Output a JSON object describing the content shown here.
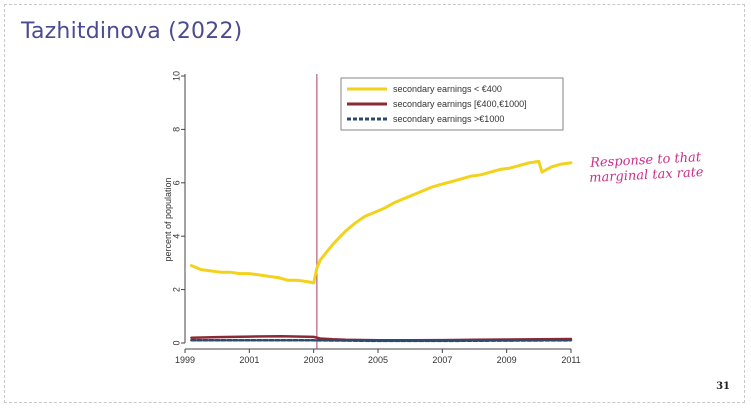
{
  "slide": {
    "title": "Tazhitdinova (2022)",
    "page_number": "31",
    "annotation": "Response to that marginal tax rate"
  },
  "colors": {
    "title": "#4b4b8f",
    "annotation": "#cc2f8a",
    "vline": "#a04060"
  },
  "chart_data": {
    "type": "line",
    "xlabel": "",
    "ylabel": "percent of population",
    "xlim": [
      1999,
      2011
    ],
    "ylim": [
      0,
      10
    ],
    "xticks": [
      1999,
      2001,
      2003,
      2005,
      2007,
      2009,
      2011
    ],
    "yticks": [
      0,
      2,
      4,
      6,
      8,
      10
    ],
    "vline": 2003.1,
    "legend_position": "top-right",
    "grid": false,
    "series": [
      {
        "name": "secondary earnings < €400",
        "color": "#f2d21a",
        "dash": "solid",
        "x": [
          1999.2,
          1999.5,
          1999.8,
          2000.1,
          2000.4,
          2000.7,
          2001.0,
          2001.3,
          2001.6,
          2001.9,
          2002.2,
          2002.5,
          2002.8,
          2003.0,
          2003.1,
          2003.2,
          2003.4,
          2003.6,
          2003.8,
          2004.0,
          2004.3,
          2004.6,
          2004.9,
          2005.2,
          2005.5,
          2005.8,
          2006.1,
          2006.4,
          2006.7,
          2007.0,
          2007.3,
          2007.6,
          2007.9,
          2008.2,
          2008.5,
          2008.8,
          2009.1,
          2009.4,
          2009.7,
          2010.0,
          2010.1,
          2010.4,
          2010.7,
          2011.0
        ],
        "y": [
          2.9,
          2.75,
          2.7,
          2.65,
          2.65,
          2.6,
          2.6,
          2.55,
          2.5,
          2.45,
          2.35,
          2.35,
          2.3,
          2.25,
          2.8,
          3.1,
          3.4,
          3.7,
          3.95,
          4.2,
          4.5,
          4.75,
          4.9,
          5.05,
          5.25,
          5.4,
          5.55,
          5.7,
          5.85,
          5.95,
          6.05,
          6.15,
          6.25,
          6.3,
          6.4,
          6.5,
          6.55,
          6.65,
          6.75,
          6.8,
          6.4,
          6.6,
          6.7,
          6.75
        ]
      },
      {
        "name": "secondary earnings [€400,€1000]",
        "color": "#8b2a35",
        "dash": "solid",
        "x": [
          1999.2,
          2000.0,
          2001.0,
          2002.0,
          2003.0,
          2003.2,
          2003.6,
          2004.0,
          2005.0,
          2006.0,
          2007.0,
          2008.0,
          2009.0,
          2010.0,
          2011.0
        ],
        "y": [
          0.2,
          0.22,
          0.24,
          0.25,
          0.23,
          0.17,
          0.14,
          0.12,
          0.1,
          0.1,
          0.11,
          0.12,
          0.13,
          0.14,
          0.15
        ]
      },
      {
        "name": "secondary earnings >€1000",
        "color": "#2c4a6e",
        "dash": "dashed",
        "x": [
          1999.2,
          2001.0,
          2003.0,
          2005.0,
          2007.0,
          2009.0,
          2011.0
        ],
        "y": [
          0.1,
          0.1,
          0.1,
          0.08,
          0.08,
          0.09,
          0.1
        ]
      }
    ]
  }
}
